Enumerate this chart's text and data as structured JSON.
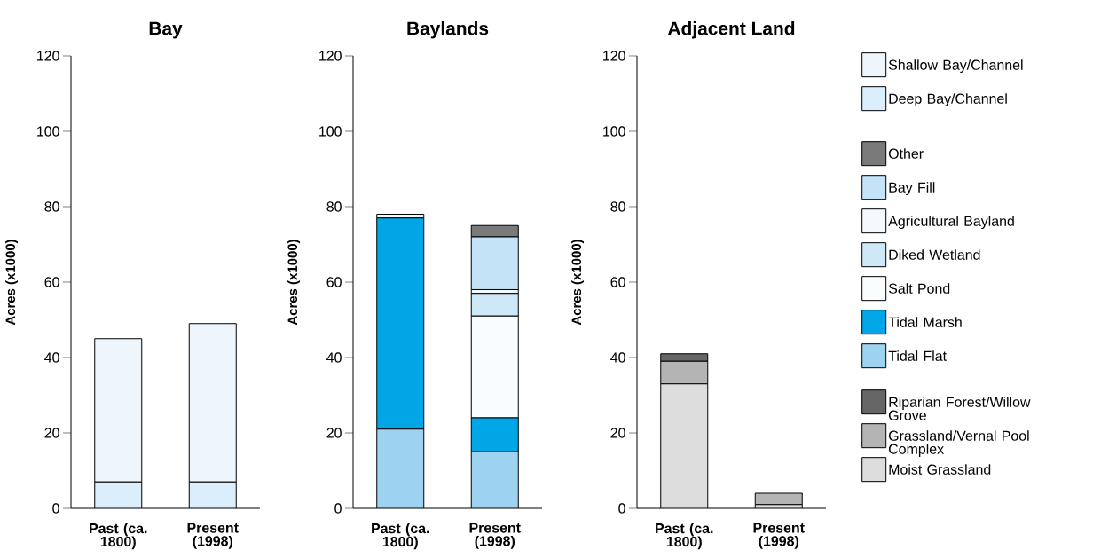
{
  "chart_data": [
    {
      "type": "bar",
      "stacked": true,
      "title": "Bay",
      "ylabel": "Acres (x1000)",
      "categories": [
        "Past (ca. 1800)",
        "Present (1998)"
      ],
      "ylim": [
        0,
        120
      ],
      "yticks": [
        0,
        20,
        40,
        60,
        80,
        100,
        120
      ],
      "legend": "right",
      "series": [
        {
          "name": "Deep Bay/Channel",
          "color": "#daeefb",
          "values": [
            7,
            7
          ]
        },
        {
          "name": "Shallow Bay/Channel",
          "color": "#eef6fc",
          "values": [
            38,
            42
          ]
        }
      ]
    },
    {
      "type": "bar",
      "stacked": true,
      "title": "Baylands",
      "ylabel": "Acres (x1000)",
      "categories": [
        "Past (ca. 1800)",
        "Present (1998)"
      ],
      "ylim": [
        0,
        120
      ],
      "yticks": [
        0,
        20,
        40,
        60,
        80,
        100,
        120
      ],
      "legend": "right",
      "series": [
        {
          "name": "Tidal Flat",
          "color": "#9dd3f1",
          "values": [
            21,
            15
          ]
        },
        {
          "name": "Tidal Marsh",
          "color": "#00a6e6",
          "values": [
            56,
            9
          ]
        },
        {
          "name": "Salt Pond",
          "color": "#fafdff",
          "values": [
            0,
            27
          ]
        },
        {
          "name": "Diked Wetland",
          "color": "#cfe8f8",
          "values": [
            0,
            6
          ]
        },
        {
          "name": "Agricultural Bayland",
          "color": "#f4f9fd",
          "values": [
            1,
            1
          ]
        },
        {
          "name": "Bay Fill",
          "color": "#c4e3f6",
          "values": [
            0,
            14
          ]
        },
        {
          "name": "Other",
          "color": "#7a7a7a",
          "values": [
            0,
            3
          ]
        }
      ]
    },
    {
      "type": "bar",
      "stacked": true,
      "title": "Adjacent Land",
      "ylabel": "Acres (x1000)",
      "categories": [
        "Past (ca. 1800)",
        "Present (1998)"
      ],
      "ylim": [
        0,
        120
      ],
      "yticks": [
        0,
        20,
        40,
        60,
        80,
        100,
        120
      ],
      "legend": "right",
      "series": [
        {
          "name": "Moist Grassland",
          "color": "#dddddd",
          "values": [
            33,
            1
          ]
        },
        {
          "name": "Grassland/Vernal Pool Complex",
          "color": "#b4b4b4",
          "values": [
            6,
            3
          ]
        },
        {
          "name": "Riparian Forest/Willow Grove",
          "color": "#666666",
          "values": [
            2,
            0
          ]
        }
      ]
    }
  ]
}
